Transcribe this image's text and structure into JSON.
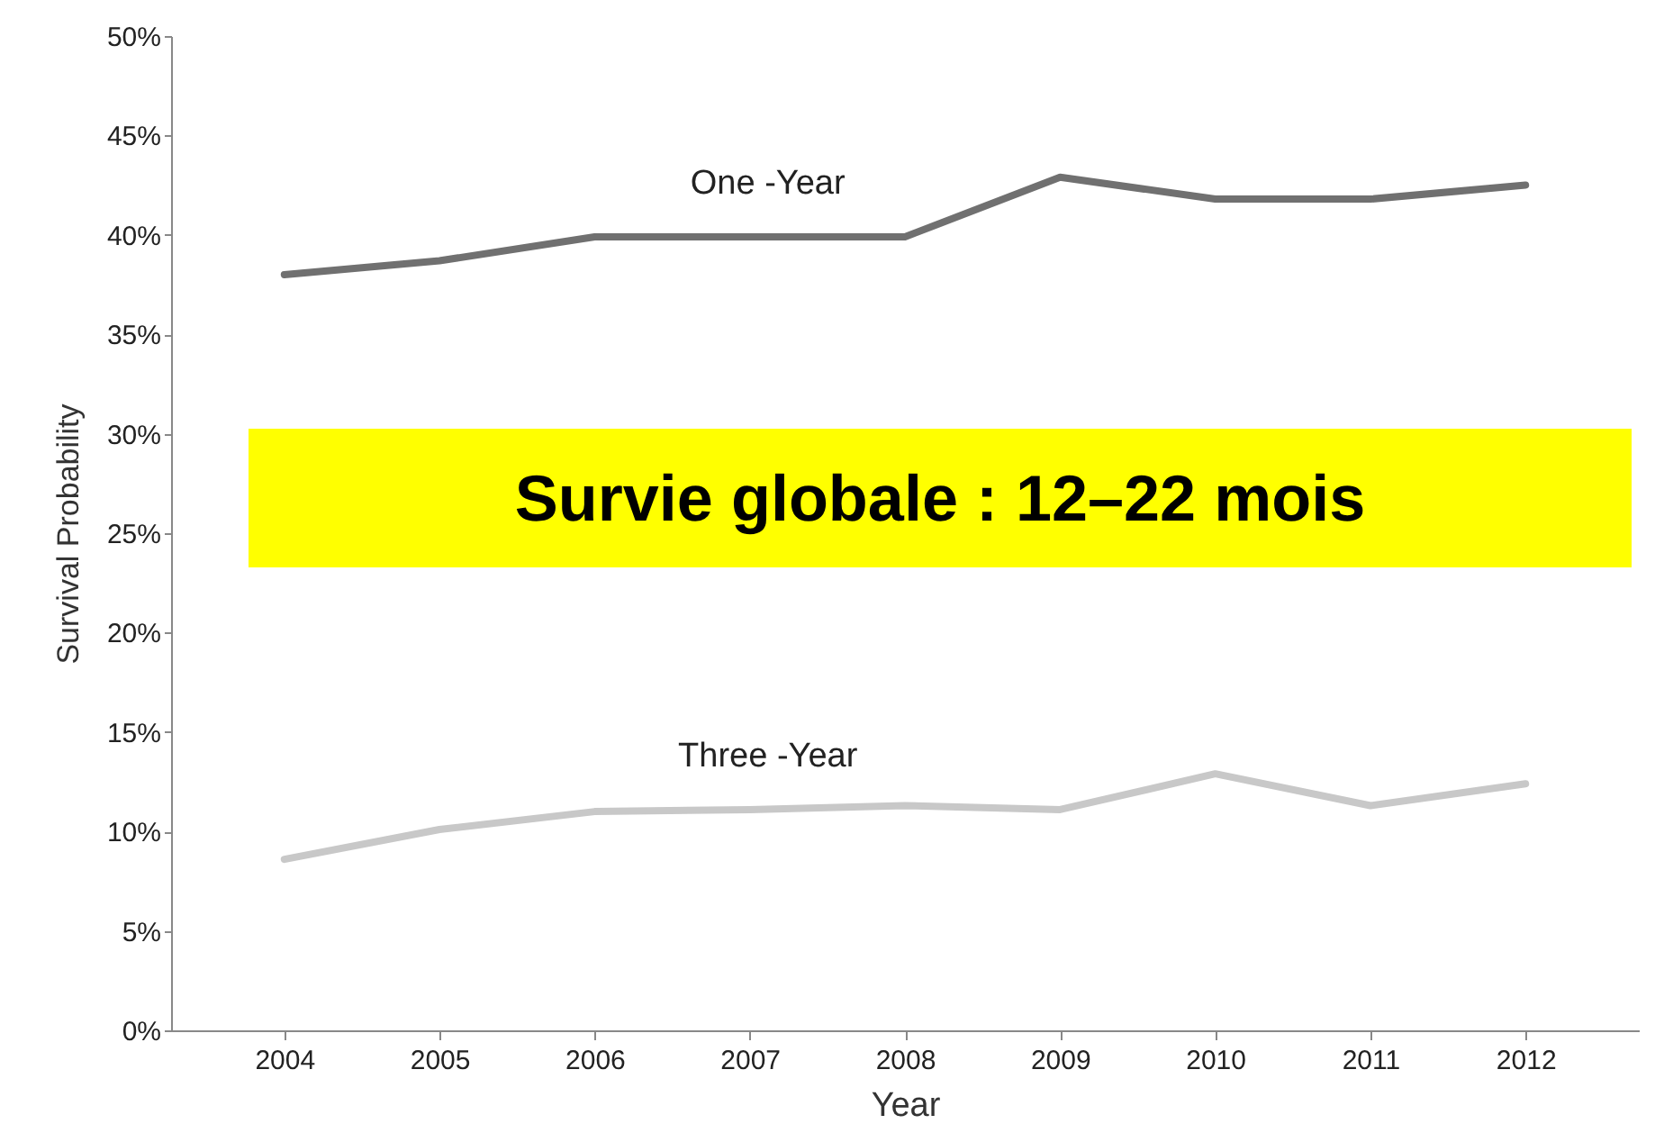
{
  "chart_data": {
    "type": "line",
    "xlabel": "Year",
    "ylabel": "Survival Probability",
    "categories": [
      "2004",
      "2005",
      "2006",
      "2007",
      "2008",
      "2009",
      "2010",
      "2011",
      "2012"
    ],
    "series": [
      {
        "name": "One -Year",
        "color": "#707070",
        "values": [
          38.0,
          38.7,
          39.9,
          39.9,
          39.9,
          42.9,
          41.8,
          41.8,
          42.5
        ]
      },
      {
        "name": "Three -Year",
        "color": "#c8c8c8",
        "values": [
          8.6,
          10.1,
          11.0,
          11.1,
          11.3,
          11.1,
          12.9,
          11.3,
          12.4
        ]
      }
    ],
    "ylim": [
      0,
      50
    ],
    "yticks": [
      {
        "value": 0,
        "label": "0%"
      },
      {
        "value": 5,
        "label": "5%"
      },
      {
        "value": 10,
        "label": "10%"
      },
      {
        "value": 15,
        "label": "15%"
      },
      {
        "value": 20,
        "label": "20%"
      },
      {
        "value": 25,
        "label": "25%"
      },
      {
        "value": 30,
        "label": "30%"
      },
      {
        "value": 35,
        "label": "35%"
      },
      {
        "value": 40,
        "label": "40%"
      },
      {
        "value": 45,
        "label": "45%"
      },
      {
        "value": 50,
        "label": "50%"
      }
    ],
    "annotations": [
      "Survie globale : 12–22 mois"
    ],
    "grid": false,
    "marker": "none",
    "line_style": "solid"
  }
}
